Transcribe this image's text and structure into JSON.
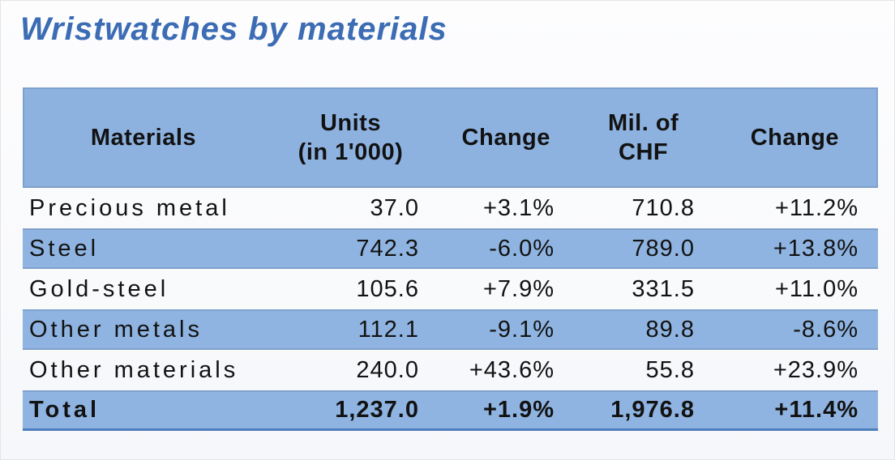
{
  "title": "Wristwatches by materials",
  "table": {
    "header": [
      {
        "line1": "Materials"
      },
      {
        "line1": "Units",
        "line2": "(in 1'000)"
      },
      {
        "line1": "Change"
      },
      {
        "line1": "Mil. of",
        "line2": "CHF"
      },
      {
        "line1": "Change"
      }
    ],
    "rows": [
      {
        "material": "Precious metal",
        "units": "37.0",
        "units_change": "+3.1%",
        "chf": "710.8",
        "chf_change": "+11.2%"
      },
      {
        "material": "Steel",
        "units": "742.3",
        "units_change": "-6.0%",
        "chf": "789.0",
        "chf_change": "+13.8%"
      },
      {
        "material": "Gold-steel",
        "units": "105.6",
        "units_change": "+7.9%",
        "chf": "331.5",
        "chf_change": "+11.0%"
      },
      {
        "material": "Other metals",
        "units": "112.1",
        "units_change": "-9.1%",
        "chf": "89.8",
        "chf_change": "-8.6%"
      },
      {
        "material": "Other materials",
        "units": "240.0",
        "units_change": "+43.6%",
        "chf": "55.8",
        "chf_change": "+23.9%"
      },
      {
        "material": "Total",
        "units": "1,237.0",
        "units_change": "+1.9%",
        "chf": "1,976.8",
        "chf_change": "+11.4%"
      }
    ]
  },
  "colors": {
    "title_blue": "#3b6cb4",
    "band_blue": "#8fb4e1",
    "band_border": "#7fa0cc",
    "table_bottom_border": "#4e7ebd",
    "text": "#121212",
    "background": "#fbfcfe"
  },
  "chart_data": {
    "type": "table",
    "title": "Wristwatches by materials",
    "columns": [
      "Materials",
      "Units (in 1'000)",
      "Change",
      "Mil. of CHF",
      "Change"
    ],
    "rows": [
      [
        "Precious metal",
        37.0,
        "+3.1%",
        710.8,
        "+11.2%"
      ],
      [
        "Steel",
        742.3,
        "-6.0%",
        789.0,
        "+13.8%"
      ],
      [
        "Gold-steel",
        105.6,
        "+7.9%",
        331.5,
        "+11.0%"
      ],
      [
        "Other metals",
        112.1,
        "-9.1%",
        89.8,
        "-8.6%"
      ],
      [
        "Other materials",
        240.0,
        "+43.6%",
        55.8,
        "+23.9%"
      ],
      [
        "Total",
        1237.0,
        "+1.9%",
        1976.8,
        "+11.4%"
      ]
    ]
  }
}
